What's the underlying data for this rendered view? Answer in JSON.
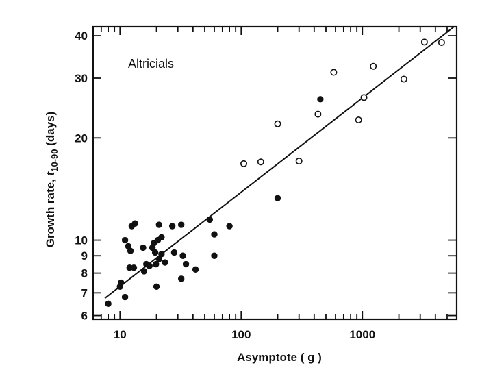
{
  "chart_data": {
    "type": "scatter",
    "title": "",
    "annotation": "Altricials",
    "xlabel": "Asymptote ( g )",
    "ylabel_parts": {
      "main": "Growth rate, ",
      "t": "t",
      "sub": "10-90",
      "tail": " (days)"
    },
    "x_scale": "log",
    "y_scale": "log",
    "xlim": [
      6,
      6000
    ],
    "ylim": [
      5.85,
      42.5
    ],
    "x_tick_labels": [
      {
        "value": 10,
        "label": "10"
      },
      {
        "value": 100,
        "label": "100"
      },
      {
        "value": 1000,
        "label": "1000"
      }
    ],
    "y_tick_labels": [
      {
        "value": 6,
        "label": "6"
      },
      {
        "value": 7,
        "label": "7"
      },
      {
        "value": 8,
        "label": "8"
      },
      {
        "value": 9,
        "label": "9"
      },
      {
        "value": 10,
        "label": "10"
      },
      {
        "value": 20,
        "label": "20"
      },
      {
        "value": 30,
        "label": "30"
      },
      {
        "value": 40,
        "label": "40"
      }
    ],
    "grid": false,
    "series": [
      {
        "marker": "filled",
        "points": [
          [
            8,
            6.5
          ],
          [
            10,
            7.3
          ],
          [
            10.2,
            7.5
          ],
          [
            11,
            6.8
          ],
          [
            11,
            10
          ],
          [
            12,
            8.3
          ],
          [
            11.7,
            9.6
          ],
          [
            12.2,
            9.3
          ],
          [
            12.5,
            11
          ],
          [
            13,
            8.3
          ],
          [
            13.3,
            11.2
          ],
          [
            15.5,
            9.5
          ],
          [
            15.8,
            8.1
          ],
          [
            16.5,
            8.5
          ],
          [
            17.5,
            8.4
          ],
          [
            18.5,
            9.5
          ],
          [
            19,
            9.8
          ],
          [
            19.5,
            9.2
          ],
          [
            19.8,
            8.5
          ],
          [
            20,
            7.3
          ],
          [
            20.5,
            10
          ],
          [
            21,
            11.1
          ],
          [
            21,
            8.8
          ],
          [
            22,
            9.1
          ],
          [
            22,
            10.2
          ],
          [
            23.5,
            8.6
          ],
          [
            27,
            11
          ],
          [
            28,
            9.2
          ],
          [
            32,
            11.1
          ],
          [
            32,
            7.7
          ],
          [
            33,
            9
          ],
          [
            35,
            8.5
          ],
          [
            42,
            8.2
          ],
          [
            55,
            11.5
          ],
          [
            60,
            9
          ],
          [
            60,
            10.4
          ],
          [
            80,
            11
          ],
          [
            200,
            13.3
          ],
          [
            450,
            26
          ]
        ]
      },
      {
        "marker": "open",
        "points": [
          [
            105,
            16.8
          ],
          [
            145,
            17
          ],
          [
            200,
            22
          ],
          [
            300,
            17.1
          ],
          [
            430,
            23.5
          ],
          [
            580,
            31.2
          ],
          [
            930,
            22.6
          ],
          [
            1030,
            26.3
          ],
          [
            1230,
            32.5
          ],
          [
            2200,
            29.8
          ],
          [
            3250,
            38.3
          ],
          [
            4500,
            38.2
          ]
        ]
      }
    ],
    "fit_line": {
      "x": [
        7.5,
        5700
      ],
      "y": [
        6.75,
        42.5
      ]
    }
  }
}
